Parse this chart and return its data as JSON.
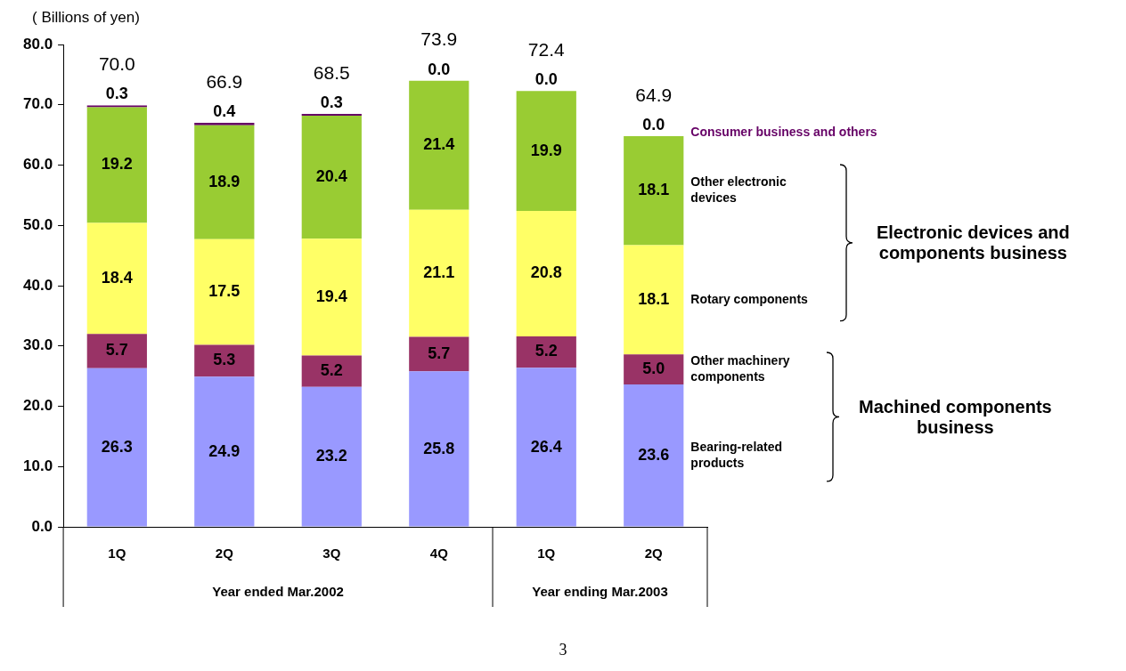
{
  "chart_data": {
    "type": "bar",
    "stacked": true,
    "ylabel": "( Billions of yen)",
    "categories": [
      "1Q",
      "2Q",
      "3Q",
      "4Q",
      "1Q",
      "2Q"
    ],
    "series": [
      {
        "name": "Bearing-related products",
        "color": "#9999ff",
        "values": [
          26.3,
          24.9,
          23.2,
          25.8,
          26.4,
          23.6
        ],
        "value_labels": [
          "26.3",
          "24.9",
          "23.2",
          "25.8",
          "26.4",
          "23.6"
        ]
      },
      {
        "name": "Other machinery components",
        "color": "#993366",
        "values": [
          5.7,
          5.3,
          5.2,
          5.7,
          5.2,
          5.0
        ],
        "value_labels": [
          "5.7",
          "5.3",
          "5.2",
          "5.7",
          "5.2",
          "5.0"
        ]
      },
      {
        "name": "Rotary components",
        "color": "#ffff66",
        "values": [
          18.4,
          17.5,
          19.4,
          21.1,
          20.8,
          18.1
        ],
        "value_labels": [
          "18.4",
          "17.5",
          "19.4",
          "21.1",
          "20.8",
          "18.1"
        ]
      },
      {
        "name": "Other electronic devices",
        "color": "#99cc33",
        "values": [
          19.2,
          18.9,
          20.4,
          21.4,
          19.9,
          18.1
        ],
        "value_labels": [
          "19.2",
          "18.9",
          "20.4",
          "21.4",
          "19.9",
          "18.1"
        ]
      },
      {
        "name": "Consumer business and others",
        "color": "#660066",
        "values": [
          0.3,
          0.4,
          0.3,
          0.0,
          0.0,
          0.0
        ],
        "value_labels": [
          "0.3",
          "0.4",
          "0.3",
          "0.0",
          "0.0",
          "0.0"
        ]
      }
    ],
    "totals": [
      "70.0",
      "66.9",
      "68.5",
      "73.9",
      "72.4",
      "64.9"
    ],
    "ylim": [
      0,
      80
    ],
    "yticks": [
      {
        "value": 0,
        "label": "0.0"
      },
      {
        "value": 10,
        "label": "10.0"
      },
      {
        "value": 20,
        "label": "20.0"
      },
      {
        "value": 30,
        "label": "30.0"
      },
      {
        "value": 40,
        "label": "40.0"
      },
      {
        "value": 50,
        "label": "50.0"
      },
      {
        "value": 60,
        "label": "60.0"
      },
      {
        "value": 70,
        "label": "70.0"
      },
      {
        "value": 80,
        "label": "80.0"
      }
    ],
    "grid": false,
    "legend": false,
    "annotations": [
      "Electronic devices and components business",
      "Machined components business",
      "Year ended Mar.2002",
      "Year ending Mar.2003",
      "3"
    ]
  }
}
